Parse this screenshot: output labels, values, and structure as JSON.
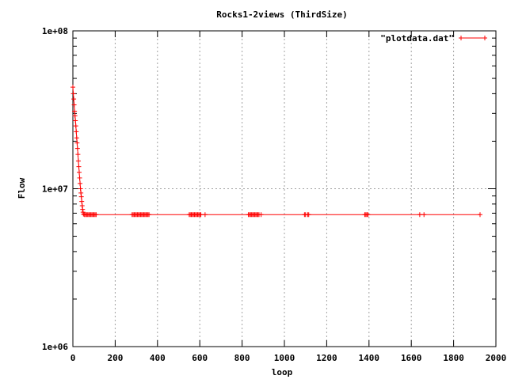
{
  "chart_data": {
    "type": "line",
    "title": "Rocks1-2views (ThirdSize)",
    "xlabel": "loop",
    "ylabel": "Flow",
    "xlim": [
      0,
      2000
    ],
    "ylim": [
      1000000,
      100000000
    ],
    "yscale": "log",
    "grid": true,
    "legend_position": "top-right",
    "x_ticks": [
      "0",
      "200",
      "400",
      "600",
      "800",
      "1000",
      "1200",
      "1400",
      "1600",
      "1800",
      "2000"
    ],
    "y_ticks": [
      "1e+06",
      "1e+07",
      "1e+08"
    ],
    "series": [
      {
        "name": "\"plotdata.dat\"",
        "color": "#ff0000",
        "marker": "plus",
        "x": [
          0,
          2,
          4,
          6,
          8,
          10,
          12,
          14,
          16,
          18,
          20,
          22,
          24,
          26,
          28,
          30,
          32,
          34,
          36,
          38,
          40,
          42,
          44,
          46,
          48,
          50,
          55,
          60,
          65,
          70,
          75,
          80,
          85,
          90,
          95,
          100,
          105,
          110,
          280,
          285,
          290,
          295,
          300,
          305,
          310,
          315,
          320,
          325,
          330,
          335,
          340,
          345,
          350,
          355,
          360,
          550,
          555,
          560,
          565,
          570,
          575,
          580,
          585,
          590,
          595,
          600,
          605,
          625,
          830,
          835,
          840,
          845,
          850,
          855,
          860,
          865,
          870,
          875,
          880,
          890,
          1095,
          1100,
          1110,
          1115,
          1380,
          1385,
          1390,
          1395,
          1640,
          1660,
          1925
        ],
        "y": [
          44000000,
          40000000,
          37000000,
          34000000,
          31000000,
          29000000,
          27000000,
          25000000,
          23000000,
          21000000,
          19500000,
          18000000,
          16500000,
          15000000,
          13800000,
          12700000,
          11700000,
          10800000,
          10000000,
          9400000,
          8900000,
          8300000,
          7800000,
          7400000,
          7100000,
          6900000,
          6850000,
          6850000,
          6850000,
          6850000,
          6850000,
          6850000,
          6850000,
          6850000,
          6850000,
          6850000,
          6850000,
          6850000,
          6850000,
          6850000,
          6850000,
          6850000,
          6850000,
          6850000,
          6850000,
          6850000,
          6850000,
          6850000,
          6850000,
          6850000,
          6850000,
          6850000,
          6850000,
          6850000,
          6850000,
          6850000,
          6850000,
          6850000,
          6850000,
          6850000,
          6850000,
          6850000,
          6850000,
          6850000,
          6850000,
          6850000,
          6850000,
          6850000,
          6850000,
          6850000,
          6850000,
          6850000,
          6850000,
          6850000,
          6850000,
          6850000,
          6850000,
          6850000,
          6850000,
          6850000,
          6850000,
          6850000,
          6850000,
          6850000,
          6850000,
          6850000,
          6850000,
          6850000,
          6850000,
          6850000,
          6850000
        ]
      }
    ]
  }
}
